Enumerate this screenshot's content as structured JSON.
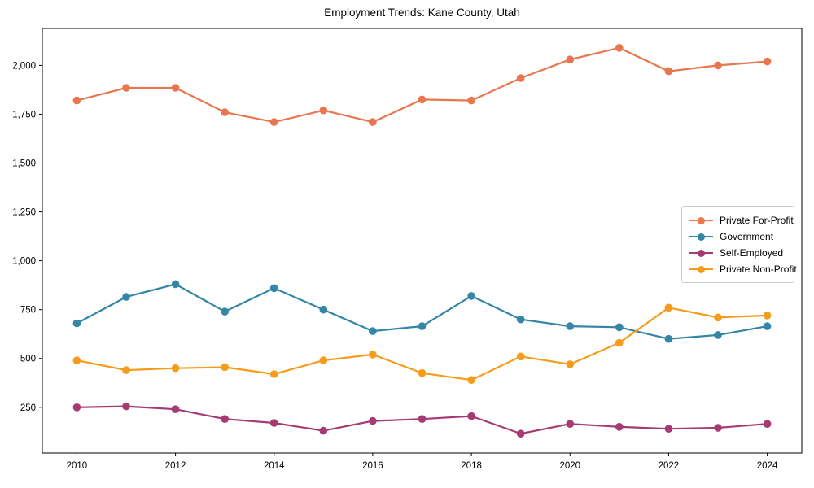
{
  "figure": {
    "title": "Employment Trends: Kane County, Utah"
  },
  "chart_data": {
    "type": "line",
    "title": "Employment Trends: Kane County, Utah",
    "x": [
      2010,
      2011,
      2012,
      2013,
      2014,
      2015,
      2016,
      2017,
      2018,
      2019,
      2020,
      2021,
      2022,
      2023,
      2024
    ],
    "series": [
      {
        "name": "Private For-Profit",
        "color": "#e8764e",
        "values": [
          1820,
          1885,
          1885,
          1760,
          1710,
          1770,
          1710,
          1825,
          1820,
          1935,
          2030,
          2090,
          1970,
          2000,
          2020
        ]
      },
      {
        "name": "Government",
        "color": "#3486a6",
        "values": [
          680,
          815,
          880,
          740,
          860,
          750,
          640,
          665,
          820,
          700,
          665,
          660,
          600,
          620,
          665
        ]
      },
      {
        "name": "Self-Employed",
        "color": "#a63a73",
        "values": [
          250,
          255,
          240,
          190,
          170,
          130,
          180,
          190,
          205,
          115,
          165,
          150,
          140,
          145,
          165
        ]
      },
      {
        "name": "Private Non-Profit",
        "color": "#f59c1a",
        "values": [
          490,
          440,
          450,
          455,
          420,
          490,
          520,
          425,
          390,
          510,
          470,
          580,
          760,
          710,
          720
        ]
      }
    ],
    "xlabel": "",
    "ylabel": "",
    "xlim": [
      2009.3,
      2024.7
    ],
    "ylim": [
      16,
      2189
    ],
    "x_ticks": [
      2010,
      2012,
      2014,
      2016,
      2018,
      2020,
      2022,
      2024
    ],
    "x_tick_labels": [
      "2010",
      "2012",
      "2014",
      "2016",
      "2018",
      "2020",
      "2022",
      "2024"
    ],
    "y_ticks": [
      250,
      500,
      750,
      1000,
      1250,
      1500,
      1750,
      2000
    ],
    "y_tick_labels": [
      "250",
      "500",
      "750",
      "1,000",
      "1,250",
      "1,500",
      "1,750",
      "2,000"
    ],
    "grid": false,
    "legend_position": "center right",
    "axis_color": "#000000",
    "tick_label_color": "#000000"
  }
}
